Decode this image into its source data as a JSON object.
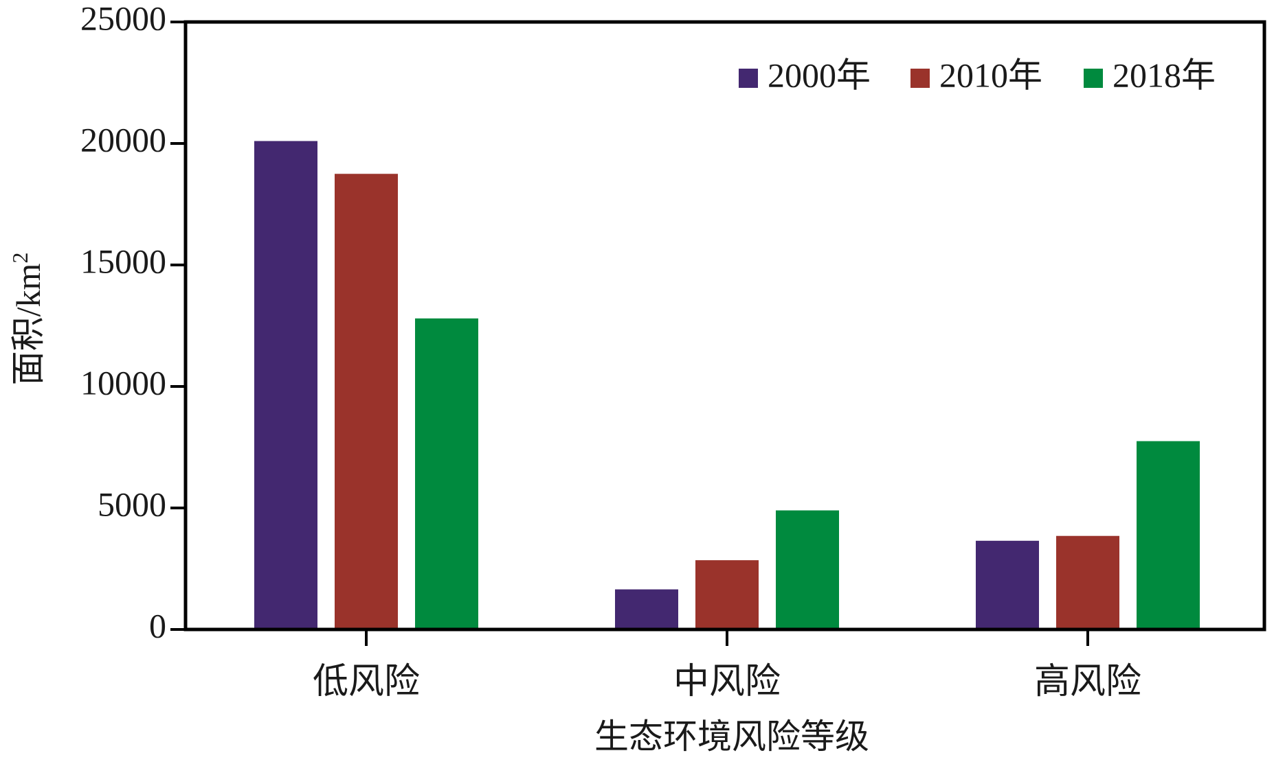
{
  "chart_data": {
    "type": "bar",
    "xlabel": "生态环境风险等级",
    "ylabel": "面积/km",
    "ylabel_sup": "2",
    "ylim": [
      0,
      25000
    ],
    "yticks": [
      "0",
      "5000",
      "10000",
      "15000",
      "20000",
      "25000"
    ],
    "categories": [
      "低风险",
      "中风险",
      "高风险"
    ],
    "series": [
      {
        "name": "2000年",
        "color": "#432870",
        "values": [
          20100,
          1650,
          3650
        ]
      },
      {
        "name": "2010年",
        "color": "#9a332b",
        "values": [
          18750,
          2850,
          3850
        ]
      },
      {
        "name": "2018年",
        "color": "#008a3e",
        "values": [
          12800,
          4900,
          7750
        ]
      }
    ],
    "legend_position": "top-right",
    "grid": false
  }
}
